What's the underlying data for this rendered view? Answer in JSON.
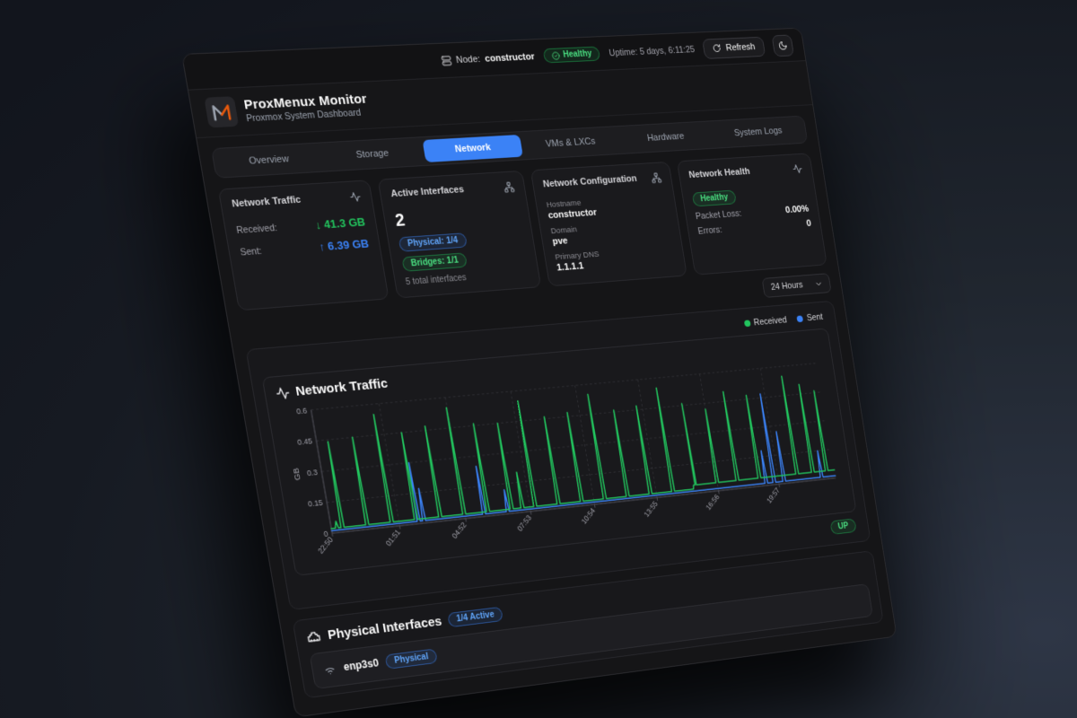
{
  "topbar": {
    "node_prefix": "Node:",
    "node_name": "constructor",
    "health_badge": "Healthy",
    "uptime": "Uptime: 5 days, 6:11:25",
    "refresh_label": "Refresh"
  },
  "header": {
    "title": "ProxMenux Monitor",
    "subtitle": "Proxmox System Dashboard"
  },
  "tabs": {
    "items": [
      {
        "label": "Overview"
      },
      {
        "label": "Storage"
      },
      {
        "label": "Network"
      },
      {
        "label": "VMs & LXCs"
      },
      {
        "label": "Hardware"
      },
      {
        "label": "System Logs"
      }
    ],
    "active": "Network"
  },
  "cards": {
    "traffic": {
      "title": "Network Traffic",
      "received_label": "Received:",
      "received_value": "↓ 41.3 GB",
      "sent_label": "Sent:",
      "sent_value": "↑ 6.39 GB"
    },
    "interfaces": {
      "title": "Active Interfaces",
      "count": "2",
      "physical_badge": "Physical: 1/4",
      "bridges_badge": "Bridges: 1/1",
      "total_note": "5 total interfaces"
    },
    "config": {
      "title": "Network Configuration",
      "hostname_label": "Hostname",
      "hostname": "constructor",
      "domain_label": "Domain",
      "domain": "pve",
      "dns_label": "Primary DNS",
      "dns": "1.1.1.1"
    },
    "health": {
      "title": "Network Health",
      "status_badge": "Healthy",
      "packet_loss_label": "Packet Loss:",
      "packet_loss": "0.00%",
      "errors_label": "Errors:",
      "errors": "0"
    }
  },
  "time_range": {
    "selected": "24 Hours"
  },
  "chart_section": {
    "title": "Network Traffic",
    "legend": [
      {
        "label": "Received",
        "color": "#22c55e"
      },
      {
        "label": "Sent",
        "color": "#3b82f6"
      }
    ],
    "status_badge": "UP"
  },
  "chart_data": {
    "type": "line",
    "title": "Network Traffic",
    "ylabel": "GB",
    "ylim": [
      0,
      0.6
    ],
    "yticks": [
      0,
      0.15,
      0.3,
      0.45,
      0.6
    ],
    "xmax": 24,
    "grid": "dashed",
    "legend_position": "top-right",
    "xticks": [
      {
        "pos": 0,
        "label": "22:50"
      },
      {
        "pos": 3.02,
        "label": "01:51"
      },
      {
        "pos": 6.03,
        "label": "04:52"
      },
      {
        "pos": 9.05,
        "label": "07:53"
      },
      {
        "pos": 12.07,
        "label": "10:54"
      },
      {
        "pos": 15.08,
        "label": "13:55"
      },
      {
        "pos": 18.1,
        "label": "16:56"
      },
      {
        "pos": 21.12,
        "label": "19:57"
      }
    ],
    "series": [
      {
        "name": "Sent",
        "color": "#3b82f6",
        "baseline": [
          {
            "from": 0,
            "to": 24,
            "v": 0.012
          }
        ],
        "spikes": [
          {
            "t": 3.9,
            "v": 0.3
          },
          {
            "t": 4.15,
            "v": 0.17
          },
          {
            "t": 6.9,
            "v": 0.25
          },
          {
            "t": 8.0,
            "v": 0.12
          },
          {
            "t": 20.5,
            "v": 0.18
          },
          {
            "t": 20.9,
            "v": 0.47
          },
          {
            "t": 21.4,
            "v": 0.27
          },
          {
            "t": 23.3,
            "v": 0.15
          }
        ]
      },
      {
        "name": "Received",
        "color": "#22c55e",
        "baseline": [
          {
            "from": 0,
            "to": 16.9,
            "v": 0.022
          },
          {
            "from": 17,
            "to": 24,
            "v": 0.042
          }
        ],
        "spikes": [
          {
            "t": 0.25,
            "v": 0.055
          },
          {
            "t": 0.5,
            "v": 0.44
          },
          {
            "t": 1.6,
            "v": 0.45
          },
          {
            "t": 2.7,
            "v": 0.55
          },
          {
            "t": 3.8,
            "v": 0.45
          },
          {
            "t": 4.9,
            "v": 0.47
          },
          {
            "t": 6.0,
            "v": 0.55
          },
          {
            "t": 7.1,
            "v": 0.46
          },
          {
            "t": 8.2,
            "v": 0.45
          },
          {
            "t": 8.7,
            "v": 0.2
          },
          {
            "t": 9.3,
            "v": 0.55
          },
          {
            "t": 10.4,
            "v": 0.46
          },
          {
            "t": 11.5,
            "v": 0.47
          },
          {
            "t": 12.6,
            "v": 0.55
          },
          {
            "t": 13.7,
            "v": 0.46
          },
          {
            "t": 14.8,
            "v": 0.47
          },
          {
            "t": 15.9,
            "v": 0.55
          },
          {
            "t": 17.0,
            "v": 0.46
          },
          {
            "t": 18.1,
            "v": 0.42
          },
          {
            "t": 19.1,
            "v": 0.5
          },
          {
            "t": 20.2,
            "v": 0.47
          },
          {
            "t": 22.1,
            "v": 0.55
          },
          {
            "t": 22.9,
            "v": 0.5
          },
          {
            "t": 23.6,
            "v": 0.46
          }
        ]
      }
    ]
  },
  "physical_section": {
    "title": "Physical Interfaces",
    "active_badge": "1/4 Active",
    "rows": [
      {
        "name": "enp3s0",
        "type_badge": "Physical"
      }
    ]
  },
  "colors": {
    "accent_blue": "#3b82f6",
    "green": "#22c55e",
    "card_bg": "#1a1a1d",
    "window_bg": "#151517"
  }
}
